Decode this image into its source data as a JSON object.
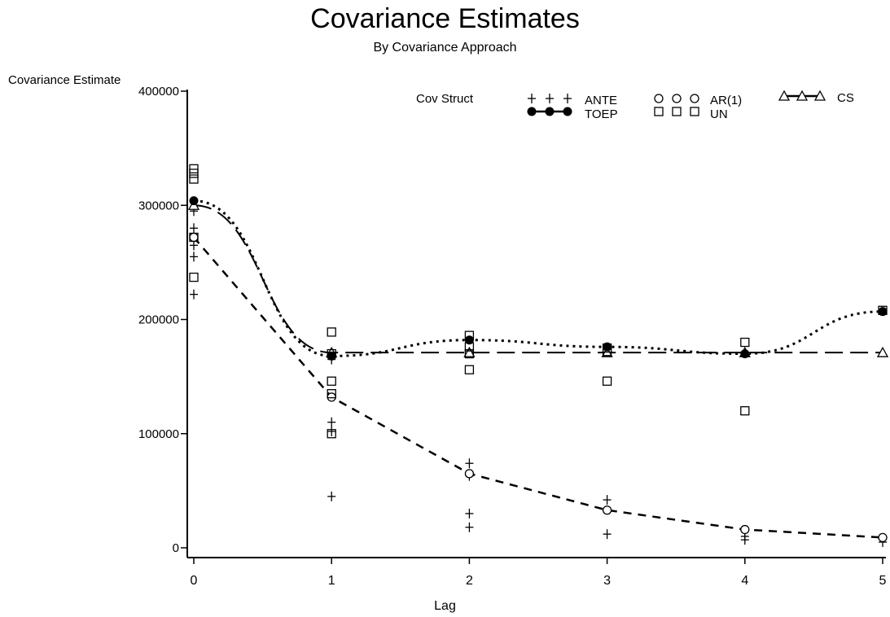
{
  "chart_data": {
    "type": "line",
    "title": "Covariance Estimates",
    "subtitle": "By Covariance Approach",
    "xlabel": "Lag",
    "ylabel": "Covariance Estimate",
    "xlim": [
      0,
      5
    ],
    "ylim": [
      0,
      400000
    ],
    "xticks": [
      "0",
      "1",
      "2",
      "3",
      "4",
      "5"
    ],
    "yticks": [
      "0",
      "100000",
      "200000",
      "300000",
      "400000"
    ],
    "grid": false,
    "legend": {
      "title": "Cov Struct",
      "position": "top-right"
    },
    "series": [
      {
        "name": "ANTE",
        "marker": "plus",
        "line": "none",
        "points": [
          [
            0,
            222000
          ],
          [
            0,
            255000
          ],
          [
            0,
            265000
          ],
          [
            0,
            280000
          ],
          [
            0,
            295000
          ],
          [
            1,
            45000
          ],
          [
            1,
            102000
          ],
          [
            1,
            110000
          ],
          [
            1,
            165000
          ],
          [
            2,
            18000
          ],
          [
            2,
            30000
          ],
          [
            2,
            63000
          ],
          [
            2,
            74000
          ],
          [
            3,
            12000
          ],
          [
            3,
            42000
          ],
          [
            4,
            7000
          ],
          [
            4,
            10000
          ],
          [
            4,
            15000
          ],
          [
            5,
            5000
          ]
        ]
      },
      {
        "name": "AR(1)",
        "marker": "circle",
        "line": "dashed",
        "points": [
          [
            0,
            272000
          ],
          [
            1,
            132000
          ],
          [
            2,
            65000
          ],
          [
            3,
            33000
          ],
          [
            4,
            16000
          ],
          [
            5,
            9000
          ]
        ]
      },
      {
        "name": "CS",
        "marker": "triangle",
        "line": "long-dash",
        "points": [
          [
            0,
            300000
          ],
          [
            1,
            171000
          ],
          [
            2,
            171000
          ],
          [
            3,
            171000
          ],
          [
            4,
            171000
          ],
          [
            5,
            171000
          ]
        ]
      },
      {
        "name": "TOEP",
        "marker": "filled-circle",
        "line": "dotted",
        "points": [
          [
            0,
            304000
          ],
          [
            1,
            168000
          ],
          [
            2,
            182000
          ],
          [
            3,
            176000
          ],
          [
            4,
            170000
          ],
          [
            5,
            207000
          ]
        ]
      },
      {
        "name": "UN",
        "marker": "square",
        "line": "none",
        "points": [
          [
            0,
            237000
          ],
          [
            0,
            272000
          ],
          [
            0,
            323000
          ],
          [
            0,
            328000
          ],
          [
            0,
            332000
          ],
          [
            1,
            100000
          ],
          [
            1,
            135000
          ],
          [
            1,
            146000
          ],
          [
            1,
            170000
          ],
          [
            1,
            189000
          ],
          [
            2,
            156000
          ],
          [
            2,
            170000
          ],
          [
            2,
            176000
          ],
          [
            2,
            186000
          ],
          [
            3,
            146000
          ],
          [
            3,
            172000
          ],
          [
            3,
            175000
          ],
          [
            4,
            120000
          ],
          [
            4,
            180000
          ],
          [
            5,
            208000
          ]
        ]
      }
    ]
  }
}
